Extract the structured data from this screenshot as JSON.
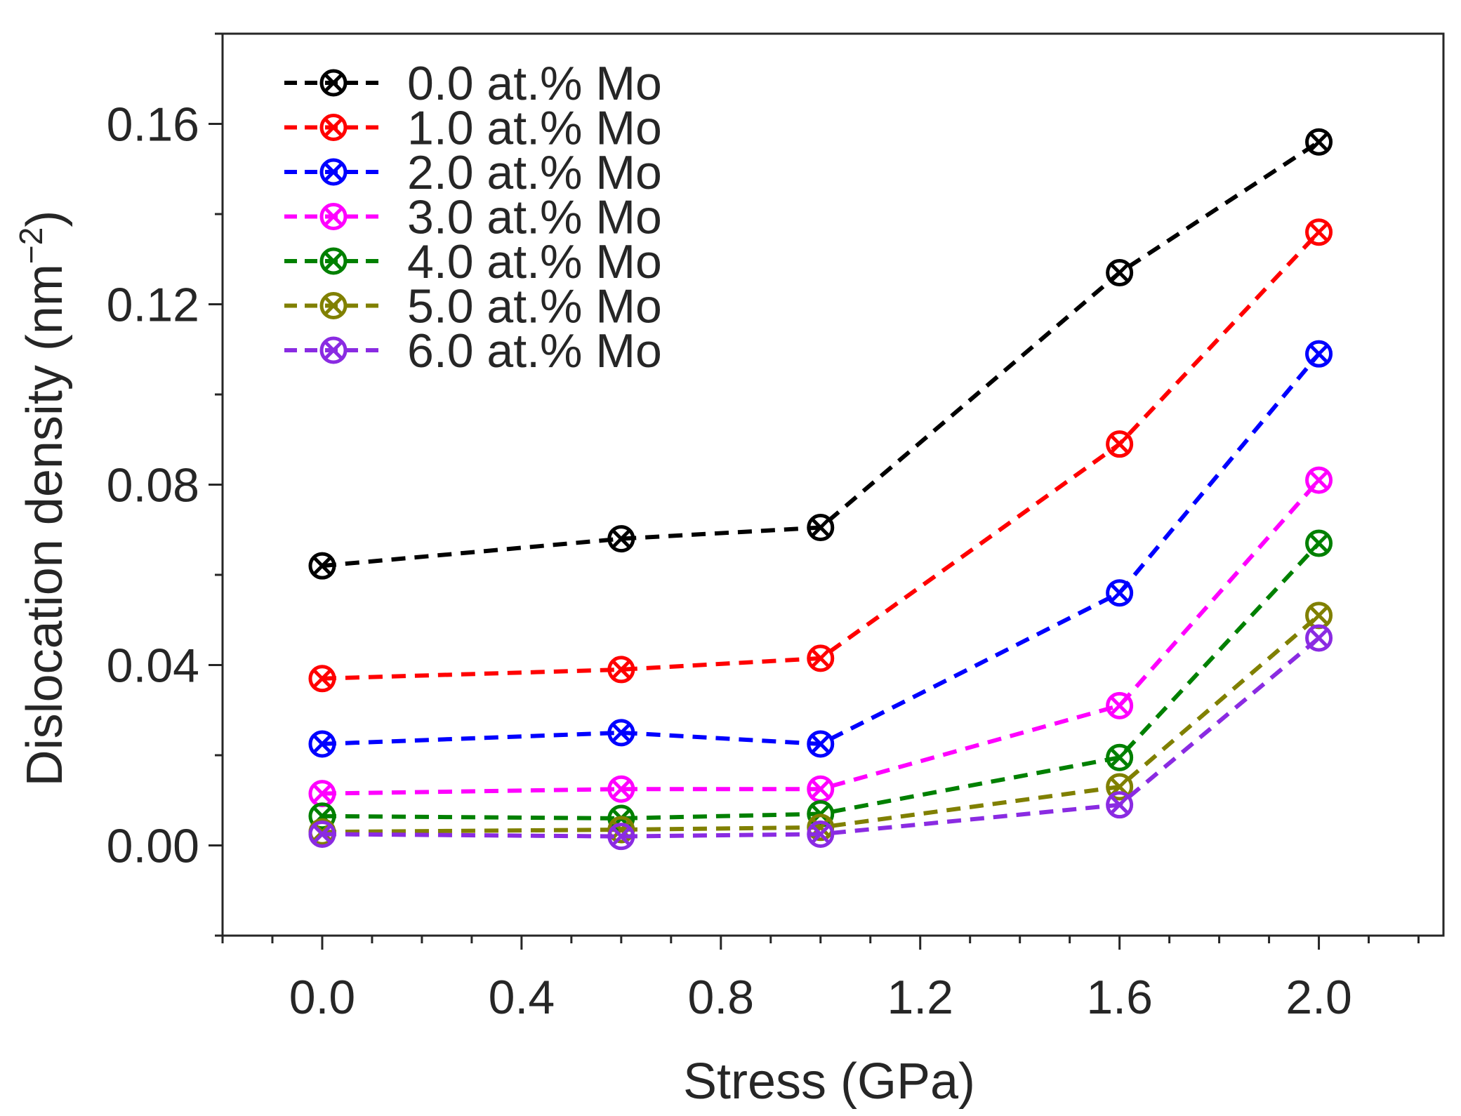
{
  "chart_data": {
    "type": "line",
    "title": "",
    "xlabel": "Stress (GPa)",
    "ylabel": "Dislocation density (nm",
    "ylabel_sup": "−2",
    "ylabel_close": ")",
    "xlim": [
      -0.2,
      2.25
    ],
    "ylim": [
      -0.02,
      0.18
    ],
    "xticks": [
      0.0,
      0.4,
      0.8,
      1.2,
      1.6,
      2.0
    ],
    "xtick_labels": [
      "0.0",
      "0.4",
      "0.8",
      "1.2",
      "1.6",
      "2.0"
    ],
    "yticks": [
      0.0,
      0.04,
      0.08,
      0.12,
      0.16
    ],
    "ytick_labels": [
      "0.00",
      "0.04",
      "0.08",
      "0.12",
      "0.16"
    ],
    "grid": false,
    "legend_position": "top-left",
    "marker": "circle-x",
    "line_style": "dashed",
    "x": [
      0.0,
      0.6,
      1.0,
      1.6,
      2.0
    ],
    "series": [
      {
        "name": "0.0 at.% Mo",
        "color": "#000000",
        "values": [
          0.062,
          0.068,
          0.0705,
          0.127,
          0.156
        ]
      },
      {
        "name": "1.0 at.% Mo",
        "color": "#ff0000",
        "values": [
          0.037,
          0.039,
          0.0415,
          0.089,
          0.136
        ]
      },
      {
        "name": "2.0 at.% Mo",
        "color": "#0000ff",
        "values": [
          0.0225,
          0.025,
          0.0225,
          0.056,
          0.109
        ]
      },
      {
        "name": "3.0 at.% Mo",
        "color": "#ff00ff",
        "values": [
          0.0115,
          0.0125,
          0.0125,
          0.031,
          0.081
        ]
      },
      {
        "name": "4.0 at.% Mo",
        "color": "#008000",
        "values": [
          0.0065,
          0.006,
          0.007,
          0.0195,
          0.067
        ]
      },
      {
        "name": "5.0 at.% Mo",
        "color": "#808000",
        "values": [
          0.003,
          0.0035,
          0.004,
          0.013,
          0.051
        ]
      },
      {
        "name": "6.0 at.% Mo",
        "color": "#8a2be2",
        "values": [
          0.0025,
          0.002,
          0.0025,
          0.009,
          0.046
        ]
      }
    ]
  }
}
